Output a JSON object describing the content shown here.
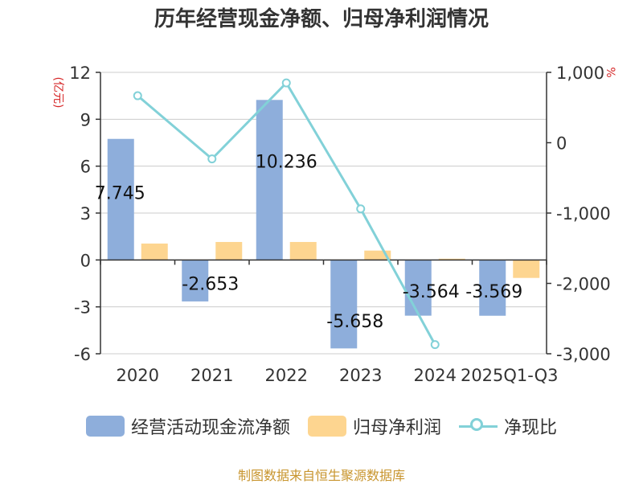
{
  "chart_data": {
    "type": "bar",
    "title": "历年经营现金净额、归母净利润情况",
    "categories": [
      "2020",
      "2021",
      "2022",
      "2023",
      "2024",
      "2025Q1-Q3"
    ],
    "left_axis": {
      "label": "(亿元)",
      "ticks": [
        "12",
        "9",
        "6",
        "3",
        "0",
        "-3",
        "-6"
      ],
      "range": [
        -6,
        12
      ]
    },
    "right_axis": {
      "label": "%",
      "ticks": [
        "1,000",
        "0",
        "-1,000",
        "-2,000",
        "-3,000"
      ],
      "range": [
        -3000,
        1000
      ]
    },
    "series": [
      {
        "name": "经营活动现金流净额",
        "type": "bar",
        "axis": "left",
        "color": "#8eaedb",
        "values": [
          7.745,
          -2.653,
          10.236,
          -5.658,
          -3.564,
          -3.569
        ],
        "labels": [
          "7.745",
          "-2.653",
          "10.236",
          "-5.658",
          "-3.564",
          "-3.569"
        ]
      },
      {
        "name": "归母净利润",
        "type": "bar",
        "axis": "left",
        "color": "#fdd590",
        "values": [
          1.05,
          1.15,
          1.15,
          0.6,
          0.08,
          -1.15
        ]
      },
      {
        "name": "净现比",
        "type": "line",
        "axis": "right",
        "color": "#82d1d8",
        "values": [
          668,
          -230,
          850,
          -940,
          -2870,
          null
        ]
      }
    ],
    "grid": true
  },
  "legend": {
    "cash": "经营活动现金流净额",
    "profit": "归母净利润",
    "ratio": "净现比"
  },
  "source": "制图数据来自恒生聚源数据库"
}
